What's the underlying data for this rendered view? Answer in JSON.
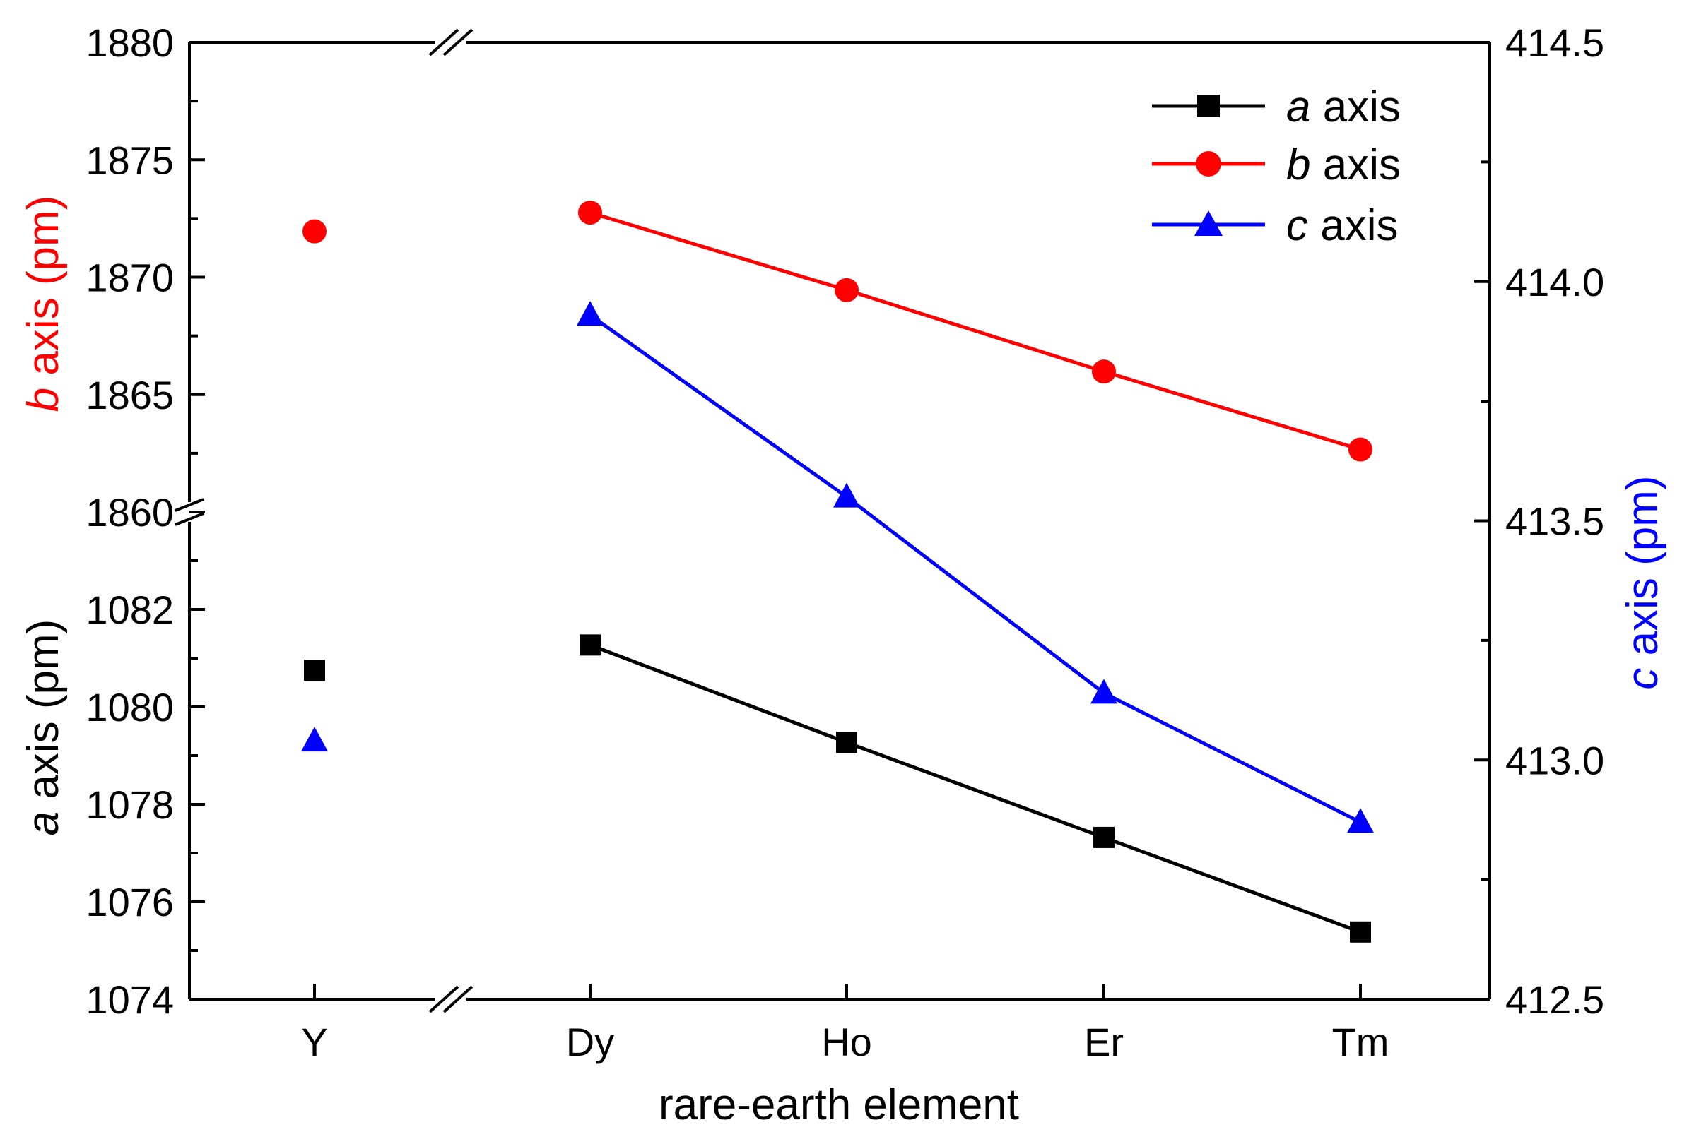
{
  "chart_data": {
    "type": "line",
    "categories": [
      "Y",
      "Dy",
      "Ho",
      "Er",
      "Tm"
    ],
    "xlabel": "rare-earth element",
    "colors": {
      "a": "#000000",
      "b": "#ff0000",
      "c": "#0000ff",
      "axis": "#000000"
    },
    "axes": {
      "b_axis": {
        "label_italic": "b",
        "label_rest": " axis (pm)",
        "ylim": [
          1860,
          1880
        ],
        "ticks": [
          "1860",
          "1865",
          "1870",
          "1875",
          "1880"
        ],
        "tick_values": [
          1860,
          1865,
          1870,
          1875,
          1880
        ]
      },
      "a_axis": {
        "label_italic": "a",
        "label_rest": " axis (pm)",
        "ylim": [
          1074,
          1084
        ],
        "ticks": [
          "1074",
          "1076",
          "1078",
          "1080",
          "1082"
        ],
        "tick_values": [
          1074,
          1076,
          1078,
          1080,
          1082
        ]
      },
      "c_axis": {
        "label_italic": "c",
        "label_rest": " axis (pm)",
        "ylim": [
          412.5,
          414.5
        ],
        "ticks": [
          "412.5",
          "413.0",
          "413.5",
          "414.0",
          "414.5"
        ],
        "tick_values": [
          412.5,
          413.0,
          413.5,
          414.0,
          414.5
        ]
      }
    },
    "series": [
      {
        "key": "a",
        "name_italic": "a",
        "name_rest": " axis",
        "marker": "square",
        "axis": "a_axis",
        "values": [
          1080.75,
          1081.27,
          1079.27,
          1077.32,
          1075.38
        ]
      },
      {
        "key": "b",
        "name_italic": "b",
        "name_rest": " axis",
        "marker": "circle",
        "axis": "b_axis",
        "values": [
          1871.95,
          1872.75,
          1869.45,
          1865.98,
          1862.66
        ]
      },
      {
        "key": "c",
        "name_italic": "c",
        "name_rest": " axis",
        "marker": "triangle",
        "axis": "c_axis",
        "values": [
          413.04,
          413.93,
          413.55,
          413.14,
          412.87
        ]
      }
    ],
    "legend_position": "top-right",
    "note": "Y is plotted as isolated points; lines connect Dy through Tm. Broken x and left y axes."
  }
}
